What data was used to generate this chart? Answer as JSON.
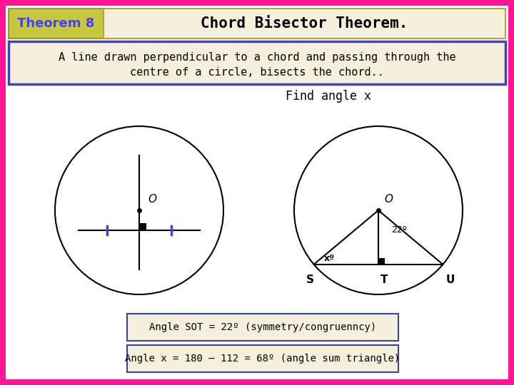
{
  "bg_color": "#ff1493",
  "main_bg": "#ffffff",
  "title_box_bg": "#f5f0dc",
  "title_box_border": "#b8a040",
  "theorem_label_bg": "#c8c840",
  "theorem_label_text": "#4040ff",
  "header_text": "Chord Bisector Theorem.",
  "theorem_label": "Theorem 8",
  "description_line1": "A line drawn perpendicular to a chord and passing through the",
  "description_line2": "centre of a circle, bisects the chord..",
  "desc_box_border": "#4040cc",
  "desc_box_bg": "#f5f0dc",
  "find_text": "Find angle x",
  "annotation1": "Angle SOT = 22º (symmetry/congruenncy)",
  "annotation2": "Angle x = 180 – 112 = 68º (angle sum triangle)",
  "annot_box_bg": "#f5f0dc",
  "annot_box_border": "#4040aa",
  "text_color": "#000000",
  "blue_tick_color": "#4444cc",
  "angle_22": "22º",
  "angle_x": "xº",
  "fig_width": 7.2,
  "fig_height": 5.4,
  "dpi": 100
}
